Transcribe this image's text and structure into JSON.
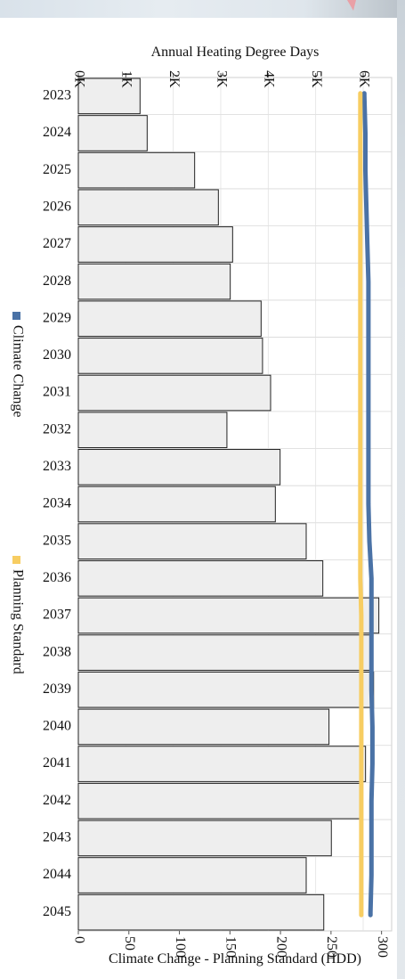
{
  "chart_data": {
    "type": "bar",
    "orientation": "horizontal",
    "categories": [
      "2023",
      "2024",
      "2025",
      "2026",
      "2027",
      "2028",
      "2029",
      "2030",
      "2031",
      "2032",
      "2033",
      "2034",
      "2035",
      "2036",
      "2037",
      "2038",
      "2039",
      "2040",
      "2041",
      "2042",
      "2043",
      "2044",
      "2045"
    ],
    "bar_axis_title": "Annual Heating Degree Days",
    "bar_ticks": [
      "0K",
      "1K",
      "2K",
      "3K",
      "4K",
      "5K",
      "6K"
    ],
    "bar_tick_values": [
      0,
      1000,
      2000,
      3000,
      4000,
      5000,
      6000
    ],
    "bar_range": [
      0,
      6600
    ],
    "bar_values": [
      1300,
      1450,
      2450,
      2950,
      3250,
      3200,
      3850,
      3880,
      4050,
      3130,
      4250,
      4150,
      4800,
      5150,
      6330,
      6150,
      6220,
      5280,
      6050,
      5980,
      5330,
      4800,
      5170
    ],
    "line_axis_title": "Climate Change - Planning Standard (HDD)",
    "line_ticks": [
      "0",
      "50",
      "100",
      "150",
      "200",
      "250",
      "300"
    ],
    "line_tick_values": [
      0,
      50,
      100,
      150,
      200,
      250,
      300
    ],
    "line_range": [
      0,
      310
    ],
    "series": [
      {
        "name": "Climate Change",
        "color": "#4a72a6",
        "values": [
          283,
          284,
          284,
          285,
          286,
          287,
          287,
          287,
          287,
          287,
          287,
          287,
          288,
          290,
          290,
          290,
          290,
          291,
          291,
          290,
          290,
          290,
          289
        ]
      },
      {
        "name": "Planning Standard",
        "color": "#f7cd62",
        "values": [
          279,
          279,
          279,
          279,
          279,
          279,
          279,
          279,
          279,
          279,
          279,
          279,
          279,
          279,
          280,
          280,
          280,
          280,
          280,
          280,
          280,
          280,
          280
        ]
      }
    ],
    "legend": {
      "position": "left",
      "items": [
        {
          "label": "Climate Change",
          "color": "#4a72a6"
        },
        {
          "label": "Planning Standard",
          "color": "#f7cd62"
        }
      ]
    },
    "grid": true,
    "bar_color": "#eeeeee"
  }
}
